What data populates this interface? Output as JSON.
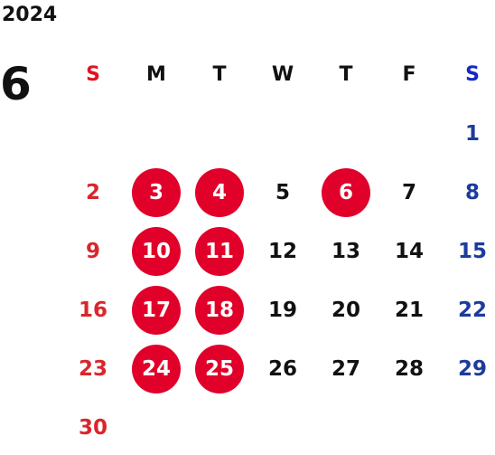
{
  "calendar": {
    "year": "2024",
    "month": "6",
    "weekdays": [
      {
        "label": "S",
        "color": "#e0141e"
      },
      {
        "label": "M",
        "color": "#111111"
      },
      {
        "label": "T",
        "color": "#111111"
      },
      {
        "label": "W",
        "color": "#111111"
      },
      {
        "label": "T",
        "color": "#111111"
      },
      {
        "label": "F",
        "color": "#111111"
      },
      {
        "label": "S",
        "color": "#1428c8"
      }
    ],
    "weeks": [
      [
        {
          "day": "",
          "marked": false
        },
        {
          "day": "",
          "marked": false
        },
        {
          "day": "",
          "marked": false
        },
        {
          "day": "",
          "marked": false
        },
        {
          "day": "",
          "marked": false
        },
        {
          "day": "",
          "marked": false
        },
        {
          "day": "1",
          "marked": false
        }
      ],
      [
        {
          "day": "2",
          "marked": false
        },
        {
          "day": "3",
          "marked": true
        },
        {
          "day": "4",
          "marked": true
        },
        {
          "day": "5",
          "marked": false
        },
        {
          "day": "6",
          "marked": true
        },
        {
          "day": "7",
          "marked": false
        },
        {
          "day": "8",
          "marked": false
        }
      ],
      [
        {
          "day": "9",
          "marked": false
        },
        {
          "day": "10",
          "marked": true
        },
        {
          "day": "11",
          "marked": true
        },
        {
          "day": "12",
          "marked": false
        },
        {
          "day": "13",
          "marked": false
        },
        {
          "day": "14",
          "marked": false
        },
        {
          "day": "15",
          "marked": false
        }
      ],
      [
        {
          "day": "16",
          "marked": false
        },
        {
          "day": "17",
          "marked": true
        },
        {
          "day": "18",
          "marked": true
        },
        {
          "day": "19",
          "marked": false
        },
        {
          "day": "20",
          "marked": false
        },
        {
          "day": "21",
          "marked": false
        },
        {
          "day": "22",
          "marked": false
        }
      ],
      [
        {
          "day": "23",
          "marked": false
        },
        {
          "day": "24",
          "marked": true
        },
        {
          "day": "25",
          "marked": true
        },
        {
          "day": "26",
          "marked": false
        },
        {
          "day": "27",
          "marked": false
        },
        {
          "day": "28",
          "marked": false
        },
        {
          "day": "29",
          "marked": false
        }
      ],
      [
        {
          "day": "30",
          "marked": false
        },
        {
          "day": "",
          "marked": false
        },
        {
          "day": "",
          "marked": false
        },
        {
          "day": "",
          "marked": false
        },
        {
          "day": "",
          "marked": false
        },
        {
          "day": "",
          "marked": false
        },
        {
          "day": "",
          "marked": false
        }
      ]
    ],
    "colors": {
      "marked_fill": "#e0002a",
      "marked_text": "#ffffff",
      "sunday": "#d9262c",
      "saturday": "#1d3b9c",
      "weekday": "#111111"
    }
  }
}
